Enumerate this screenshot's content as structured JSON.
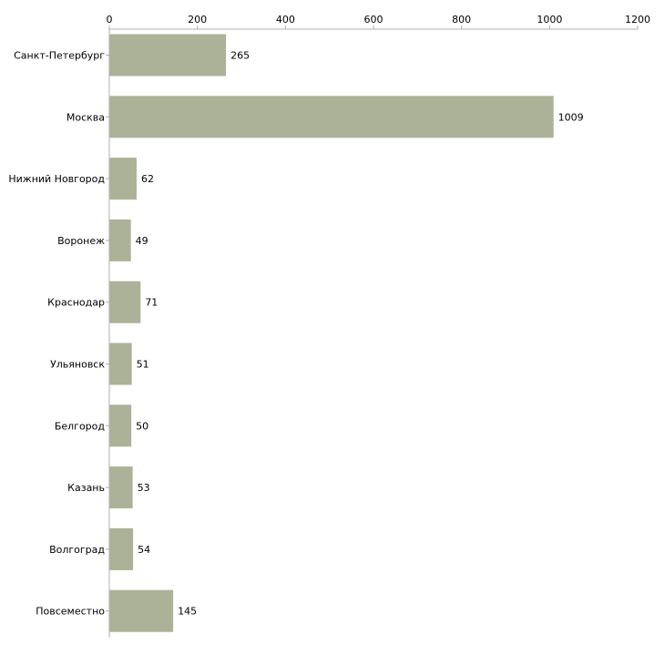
{
  "chart_data": {
    "type": "bar",
    "orientation": "horizontal",
    "title": "",
    "xlabel": "",
    "ylabel": "",
    "categories": [
      "Санкт-Петербург",
      "Москва",
      "Нижний Новгород",
      "Воронеж",
      "Краснодар",
      "Ульяновск",
      "Белгород",
      "Казань",
      "Волгоград",
      "Повсеместно"
    ],
    "values": [
      265,
      1009,
      62,
      49,
      71,
      51,
      50,
      53,
      54,
      145
    ],
    "xlim": [
      0,
      1200
    ],
    "xticks": [
      0,
      200,
      400,
      600,
      800,
      1000,
      1200
    ],
    "axis_position": "top",
    "grid": false,
    "legend": "none",
    "colors": {
      "bar": "#acb298",
      "axis": "#b0b0b0",
      "text": "#000000"
    }
  }
}
